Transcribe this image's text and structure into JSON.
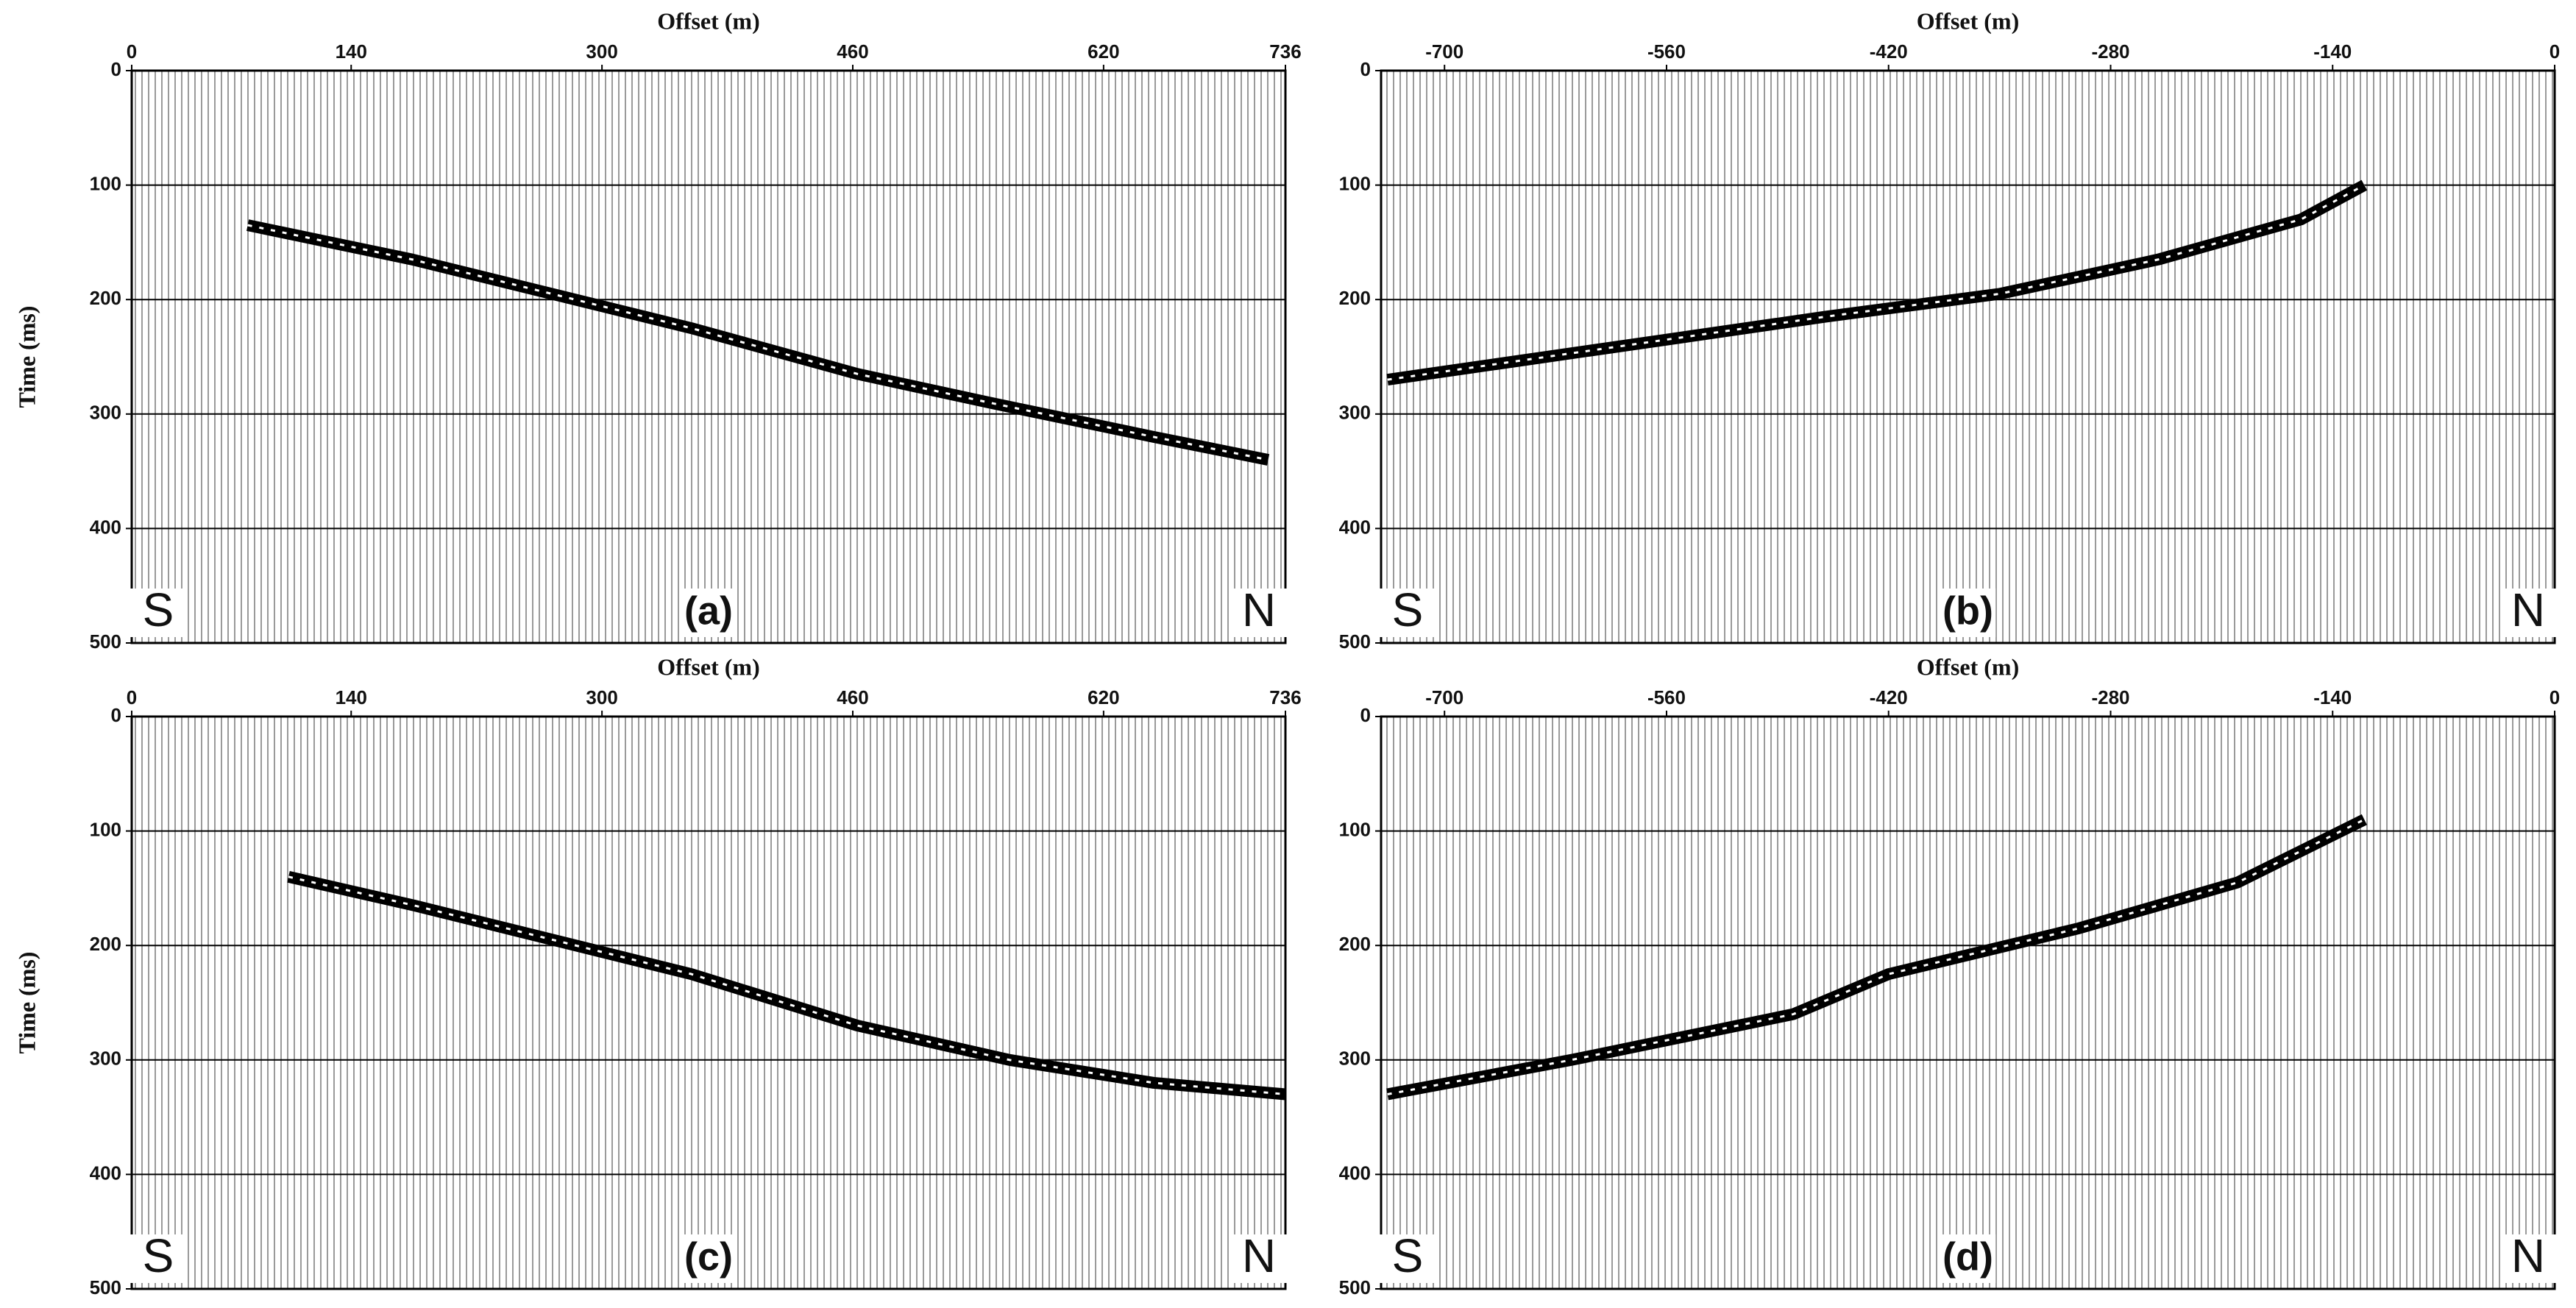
{
  "chart_data": [
    {
      "type": "seismic",
      "x_label": "Offset (m)",
      "y_label": "Time (ms)",
      "xlim": [
        0,
        736
      ],
      "xticks": [
        0,
        140,
        300,
        460,
        620,
        736
      ],
      "ylim": [
        0,
        500
      ],
      "yticks": [
        0,
        100,
        200,
        300,
        400,
        500
      ],
      "grid": true,
      "annotations": [
        "S",
        "(a)",
        "N"
      ],
      "x": [
        74,
        179,
        357,
        463,
        547,
        652,
        725
      ],
      "values": [
        135,
        165,
        225,
        265,
        290,
        320,
        340
      ]
    },
    {
      "type": "seismic",
      "x_label": "Offset (m)",
      "y_label": "Time (ms)",
      "xlim": [
        -740,
        0
      ],
      "xticks": [
        -700,
        -560,
        -420,
        -280,
        -140,
        0
      ],
      "ylim": [
        0,
        500
      ],
      "yticks": [
        0,
        100,
        200,
        300,
        400,
        500
      ],
      "grid": true,
      "annotations": [
        "S",
        "(b)",
        "N"
      ],
      "x": [
        -736,
        -560,
        -460,
        -350,
        -250,
        -160,
        -120
      ],
      "values": [
        270,
        235,
        215,
        195,
        165,
        130,
        100
      ]
    },
    {
      "type": "seismic",
      "x_label": "Offset (m)",
      "y_label": "Time (ms)",
      "xlim": [
        0,
        736
      ],
      "xticks": [
        0,
        140,
        300,
        460,
        620,
        736
      ],
      "ylim": [
        0,
        500
      ],
      "yticks": [
        0,
        100,
        200,
        300,
        400,
        500
      ],
      "grid": true,
      "annotations": [
        "S",
        "(c)",
        "N"
      ],
      "x": [
        100,
        180,
        357,
        463,
        560,
        652,
        736
      ],
      "values": [
        140,
        165,
        225,
        270,
        300,
        320,
        330
      ]
    },
    {
      "type": "seismic",
      "x_label": "Offset (m)",
      "y_label": "Time (ms)",
      "xlim": [
        -740,
        0
      ],
      "xticks": [
        -700,
        -560,
        -420,
        -280,
        -140,
        0
      ],
      "ylim": [
        0,
        500
      ],
      "yticks": [
        0,
        100,
        200,
        300,
        400,
        500
      ],
      "grid": true,
      "annotations": [
        "S",
        "(d)",
        "N"
      ],
      "x": [
        -736,
        -620,
        -480,
        -420,
        -300,
        -200,
        -120
      ],
      "values": [
        330,
        300,
        260,
        225,
        185,
        145,
        90
      ]
    }
  ]
}
